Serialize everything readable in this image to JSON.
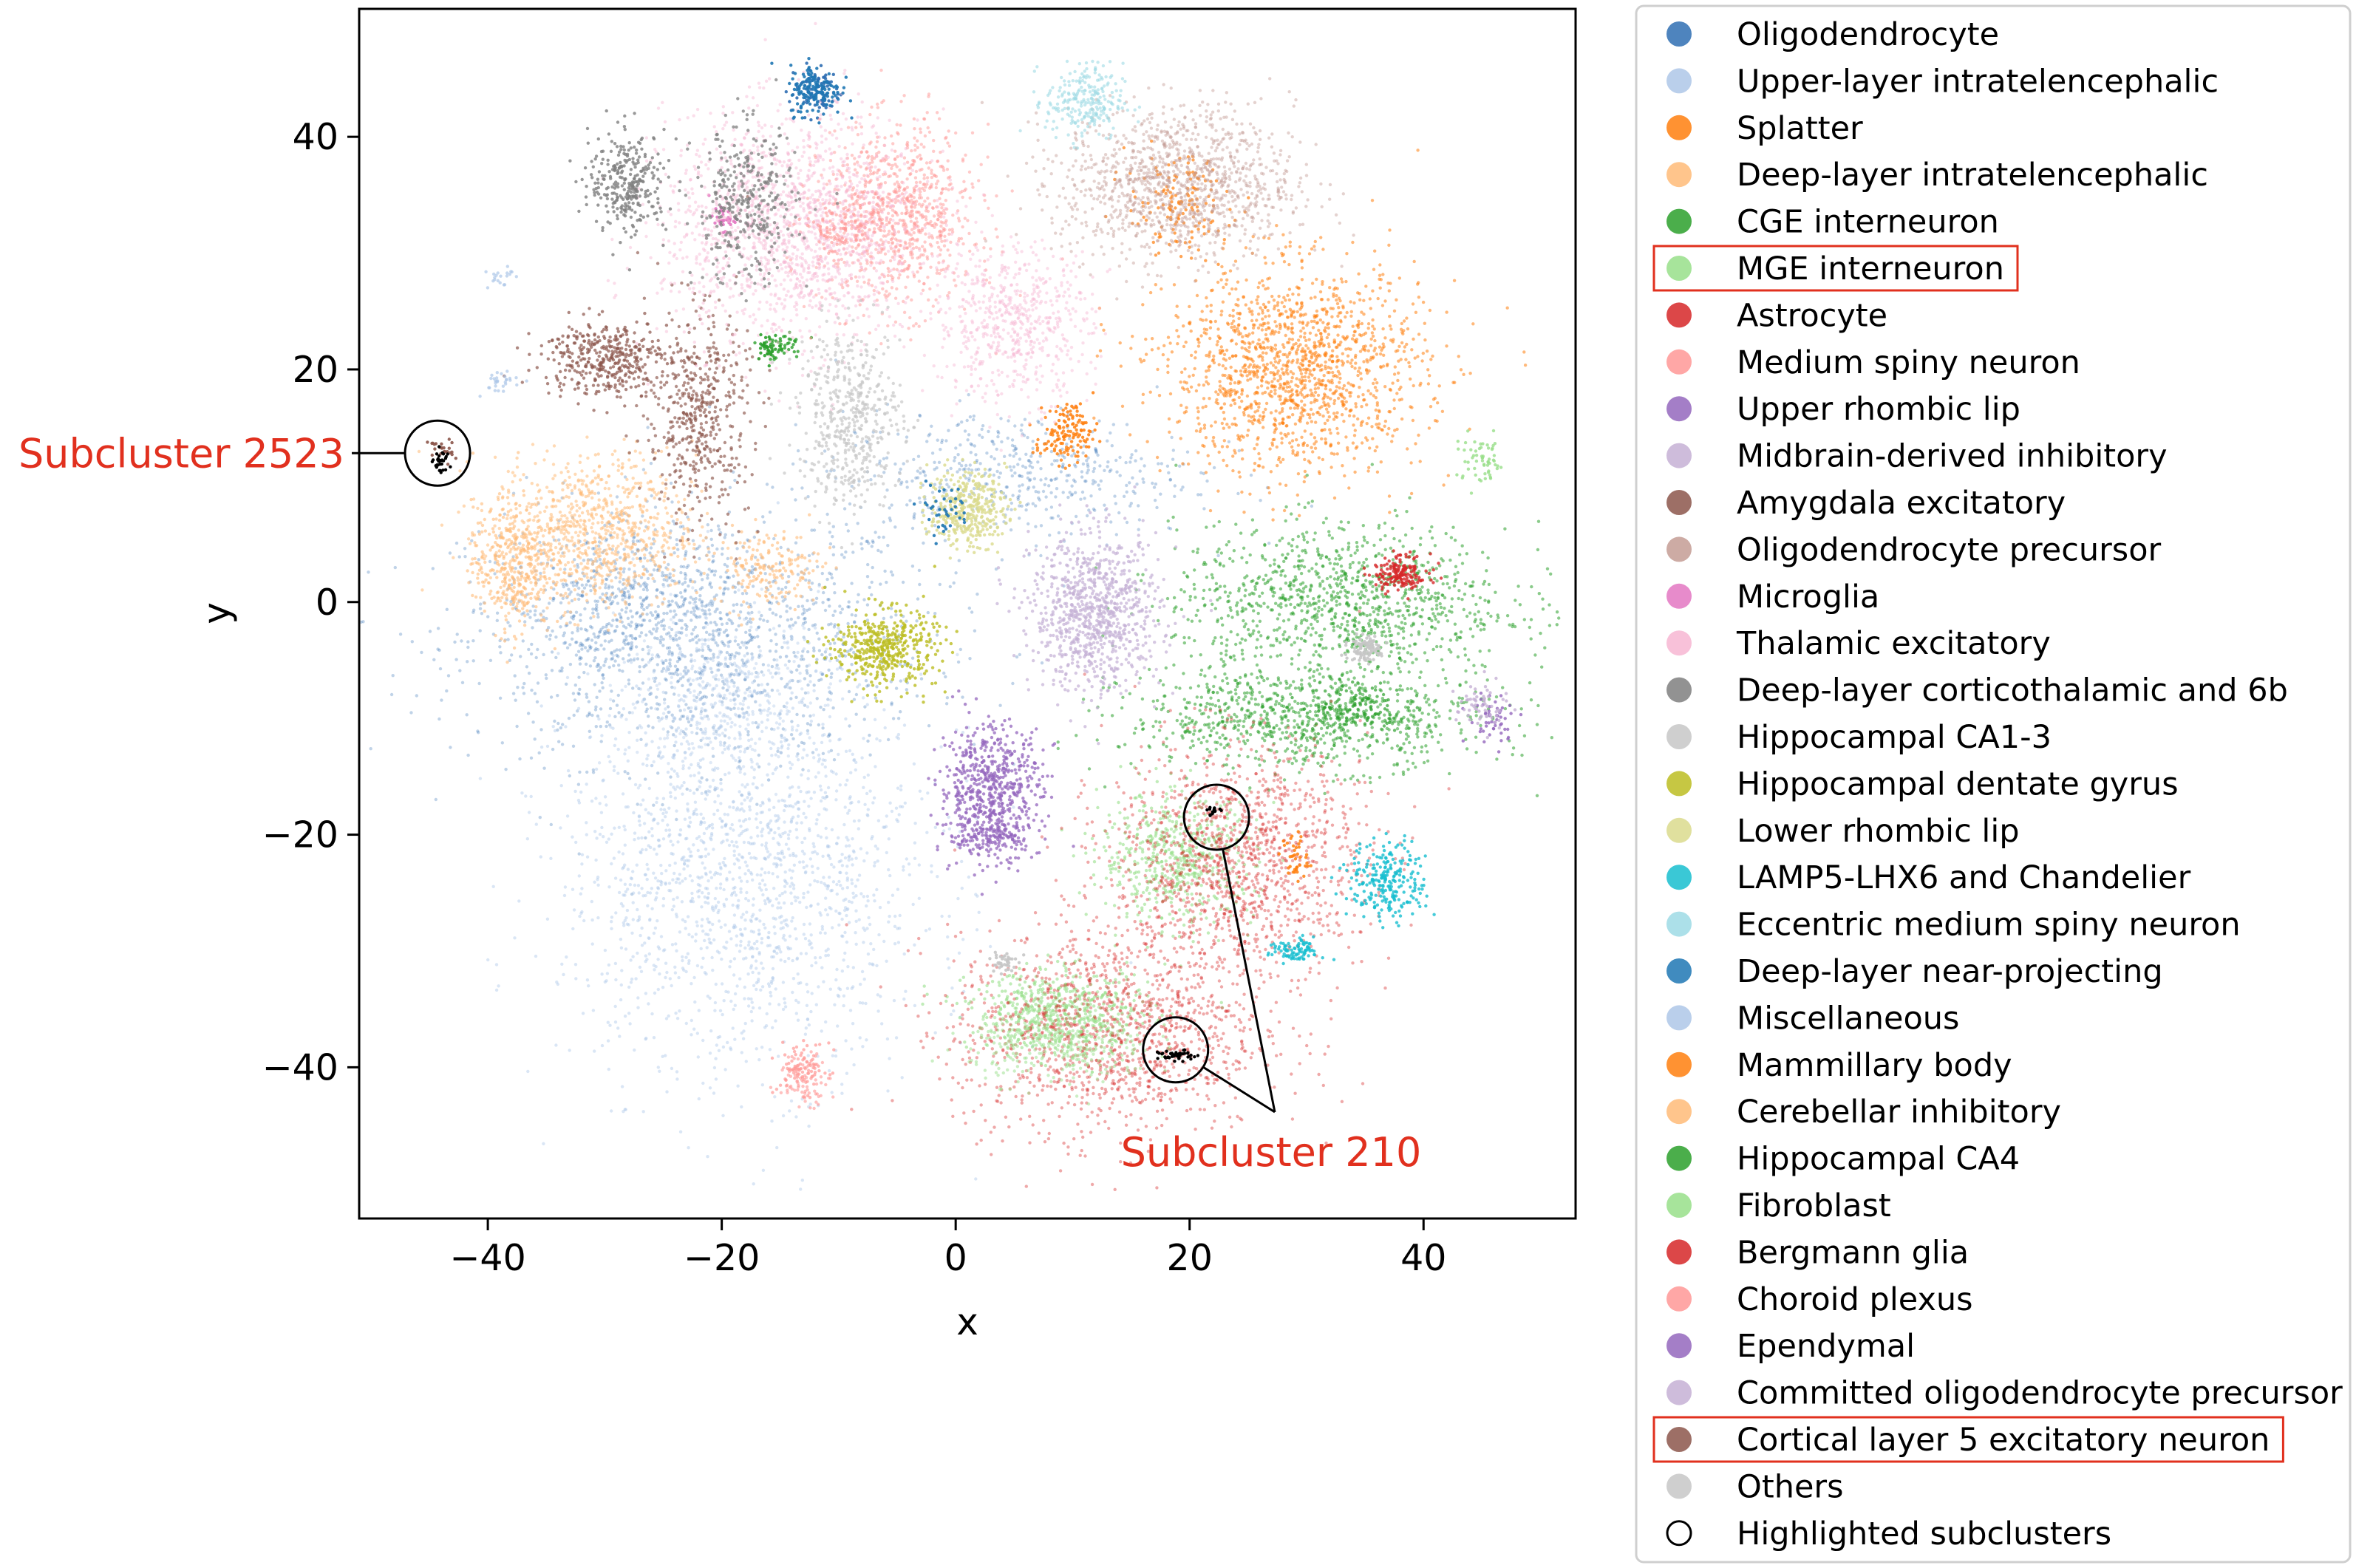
{
  "chart_data": {
    "type": "scatter",
    "xlabel": "x",
    "ylabel": "y",
    "xlim": [
      -51,
      53
    ],
    "ylim": [
      -53,
      51
    ],
    "x_ticks": [
      -40,
      -20,
      0,
      20,
      40
    ],
    "y_ticks": [
      40,
      20,
      0,
      -20,
      -40
    ],
    "x_tick_labels": [
      "−40",
      "−20",
      "0",
      "20",
      "40"
    ],
    "y_tick_labels": [
      "40",
      "20",
      "0",
      "−20",
      "−40"
    ],
    "grid": false,
    "legend_position": "outside-right",
    "series": [
      {
        "name": "Oligodendrocyte",
        "color": "#2f6eb3",
        "highlight": false,
        "regions": [
          [
            -22,
            -3,
            18,
            10,
            1400,
            0.3
          ],
          [
            -30,
            0,
            8,
            6,
            300,
            0.3
          ],
          [
            5,
            11,
            14,
            5,
            500,
            0.3
          ],
          [
            -12,
            44,
            2,
            2,
            80,
            0.9
          ]
        ]
      },
      {
        "name": "Upper-layer intratelencephalic",
        "color": "#aec7e8",
        "highlight": false,
        "regions": [
          [
            -18,
            -23,
            14,
            16,
            1800,
            0.45
          ],
          [
            -20,
            -8,
            8,
            6,
            400,
            0.4
          ]
        ]
      },
      {
        "name": "Splatter",
        "color": "#ff7f0e",
        "highlight": false,
        "regions": [
          [
            29,
            20,
            10,
            8,
            1500,
            0.55
          ],
          [
            19,
            34,
            4,
            4,
            150,
            0.7
          ],
          [
            9,
            14,
            2,
            2,
            60,
            0.8
          ]
        ]
      },
      {
        "name": "Deep-layer intratelencephalic",
        "color": "#ffbb78",
        "highlight": false,
        "regions": [
          [
            -31,
            6,
            8,
            6,
            900,
            0.55
          ],
          [
            -16,
            3,
            4,
            3,
            180,
            0.6
          ]
        ]
      },
      {
        "name": "CGE interneuron",
        "color": "#2ca02c",
        "highlight": false,
        "regions": [
          [
            33,
            0,
            13,
            6,
            1100,
            0.55
          ],
          [
            30,
            -10,
            14,
            4,
            900,
            0.55
          ],
          [
            -15,
            22,
            2,
            1,
            50,
            0.8
          ]
        ]
      },
      {
        "name": "MGE interneuron",
        "color": "#98df8a",
        "highlight": true,
        "regions": [
          [
            19,
            -22,
            6,
            5,
            600,
            0.6
          ],
          [
            9,
            -35,
            7,
            3,
            500,
            0.6
          ],
          [
            45,
            12,
            2,
            2,
            60,
            0.8
          ]
        ]
      },
      {
        "name": "Astrocyte",
        "color": "#d62728",
        "highlight": false,
        "regions": [
          [
            24,
            -22,
            10,
            9,
            1300,
            0.4
          ],
          [
            13,
            -37,
            12,
            8,
            1300,
            0.4
          ],
          [
            38,
            2,
            2,
            1,
            80,
            0.8
          ]
        ]
      },
      {
        "name": "Medium spiny neuron",
        "color": "#ff9896",
        "highlight": false,
        "regions": [
          [
            -5,
            33,
            6,
            7,
            900,
            0.5
          ],
          [
            -13,
            -41,
            2,
            2,
            80,
            0.6
          ]
        ]
      },
      {
        "name": "Upper rhombic lip",
        "color": "#9467bd",
        "highlight": false,
        "regions": [
          [
            3,
            -16,
            4,
            5,
            600,
            0.75
          ],
          [
            46,
            -10,
            2,
            2,
            50,
            0.8
          ]
        ]
      },
      {
        "name": "Midbrain-derived inhibitory",
        "color": "#c5b0d5",
        "highlight": false,
        "regions": [
          [
            12,
            -1,
            5,
            6,
            900,
            0.7
          ]
        ]
      },
      {
        "name": "Amygdala excitatory",
        "color": "#8c564b",
        "highlight": false,
        "regions": [
          [
            -30,
            21,
            5,
            3,
            400,
            0.7
          ],
          [
            -22,
            16,
            4,
            8,
            500,
            0.65
          ]
        ]
      },
      {
        "name": "Oligodendrocyte precursor",
        "color": "#c49c94",
        "highlight": false,
        "regions": [
          [
            19,
            36,
            9,
            6,
            1200,
            0.45
          ]
        ]
      },
      {
        "name": "Microglia",
        "color": "#e377c2",
        "highlight": false,
        "regions": [
          [
            -20,
            33,
            1,
            1,
            30,
            0.9
          ]
        ]
      },
      {
        "name": "Thalamic excitatory",
        "color": "#f7b6d2",
        "highlight": false,
        "regions": [
          [
            -14,
            32,
            10,
            9,
            1600,
            0.45
          ],
          [
            5,
            24,
            6,
            6,
            600,
            0.45
          ]
        ]
      },
      {
        "name": "Deep-layer corticothalamic and 6b",
        "color": "#7f7f7f",
        "highlight": false,
        "regions": [
          [
            -28,
            36,
            3,
            4,
            300,
            0.8
          ],
          [
            -18,
            34,
            4,
            6,
            350,
            0.75
          ]
        ]
      },
      {
        "name": "Hippocampal CA1-3",
        "color": "#c7c7c7",
        "highlight": false,
        "regions": [
          [
            -9,
            16,
            4,
            7,
            500,
            0.7
          ],
          [
            4,
            -31,
            1,
            1,
            40,
            0.9
          ],
          [
            35,
            -4,
            2,
            1,
            60,
            0.9
          ]
        ]
      },
      {
        "name": "Hippocampal dentate gyrus",
        "color": "#bcbd22",
        "highlight": false,
        "regions": [
          [
            -6,
            -4,
            4,
            3,
            450,
            0.8
          ]
        ]
      },
      {
        "name": "Lower rhombic lip",
        "color": "#dbdb8d",
        "highlight": false,
        "regions": [
          [
            1,
            8,
            3,
            3,
            350,
            0.8
          ]
        ]
      },
      {
        "name": "LAMP5-LHX6 and Chandelier",
        "color": "#17becf",
        "highlight": false,
        "regions": [
          [
            37,
            -24,
            3,
            3,
            250,
            0.8
          ],
          [
            29,
            -30,
            2,
            1,
            90,
            0.8
          ]
        ]
      },
      {
        "name": "Eccentric medium spiny neuron",
        "color": "#9edae5",
        "highlight": false,
        "regions": [
          [
            11,
            43,
            3,
            3,
            250,
            0.6
          ]
        ]
      },
      {
        "name": "Deep-layer near-projecting",
        "color": "#1f77b4",
        "highlight": false,
        "regions": [
          [
            -12,
            44,
            2,
            2,
            150,
            0.9
          ],
          [
            -1,
            8,
            2,
            2,
            40,
            0.9
          ]
        ]
      },
      {
        "name": "Miscellaneous",
        "color": "#aec7e8",
        "highlight": false,
        "regions": [
          [
            -39,
            19,
            2,
            1,
            30,
            0.7
          ],
          [
            -39,
            28,
            1,
            1,
            20,
            0.7
          ]
        ]
      },
      {
        "name": "Mammillary body",
        "color": "#ff7f0e",
        "highlight": false,
        "regions": [
          [
            10,
            15,
            2,
            2,
            80,
            0.85
          ],
          [
            29,
            -22,
            1,
            2,
            40,
            0.85
          ]
        ]
      },
      {
        "name": "Cerebellar inhibitory",
        "color": "#ffbb78",
        "highlight": false,
        "regions": [
          [
            -38,
            3,
            3,
            5,
            350,
            0.6
          ]
        ]
      },
      {
        "name": "Hippocampal CA4",
        "color": "#2ca02c",
        "highlight": false,
        "regions": [
          [
            -16,
            22,
            1,
            1,
            30,
            0.9
          ],
          [
            34,
            -9,
            4,
            2,
            120,
            0.7
          ]
        ]
      },
      {
        "name": "Fibroblast",
        "color": "#98df8a",
        "highlight": false,
        "regions": [
          [
            9,
            -38,
            7,
            3,
            400,
            0.5
          ]
        ]
      },
      {
        "name": "Bergmann glia",
        "color": "#d62728",
        "highlight": false,
        "regions": [
          [
            38,
            3,
            2,
            1,
            90,
            0.8
          ]
        ]
      },
      {
        "name": "Choroid plexus",
        "color": "#ff9896",
        "highlight": false,
        "regions": [
          [
            -13,
            -40,
            2,
            2,
            80,
            0.7
          ],
          [
            -10,
            32,
            3,
            2,
            100,
            0.6
          ]
        ]
      },
      {
        "name": "Ependymal",
        "color": "#9467bd",
        "highlight": false,
        "regions": [
          [
            3,
            -20,
            3,
            2,
            150,
            0.75
          ]
        ]
      },
      {
        "name": "Committed oligodendrocyte precursor",
        "color": "#c5b0d5",
        "highlight": false,
        "regions": [
          [
            45,
            -9,
            2,
            2,
            60,
            0.8
          ]
        ]
      },
      {
        "name": "Cortical layer 5 excitatory neuron",
        "color": "#8c564b",
        "highlight": true,
        "regions": [
          [
            -44,
            13,
            1,
            1,
            25,
            0.9
          ]
        ]
      },
      {
        "name": "Others",
        "color": "#c7c7c7",
        "highlight": false,
        "regions": [
          [
            35,
            -4,
            1,
            1,
            40,
            0.9
          ]
        ]
      },
      {
        "name": "Highlighted subclusters",
        "color": "#000000",
        "marker": "open-circle",
        "highlight": false,
        "regions": [
          [
            -44,
            12,
            0.6,
            1,
            30,
            1
          ],
          [
            22,
            -18,
            0.5,
            0.3,
            15,
            1
          ],
          [
            19,
            -39,
            1.5,
            0.4,
            40,
            1
          ]
        ]
      }
    ],
    "annotations": [
      {
        "text": "Subcluster 2523",
        "points": [
          [
            -44.3,
            12.8
          ]
        ]
      },
      {
        "text": "Subcluster 210",
        "points": [
          [
            22.3,
            -18.5
          ],
          [
            18.8,
            -38.5
          ]
        ]
      }
    ]
  }
}
